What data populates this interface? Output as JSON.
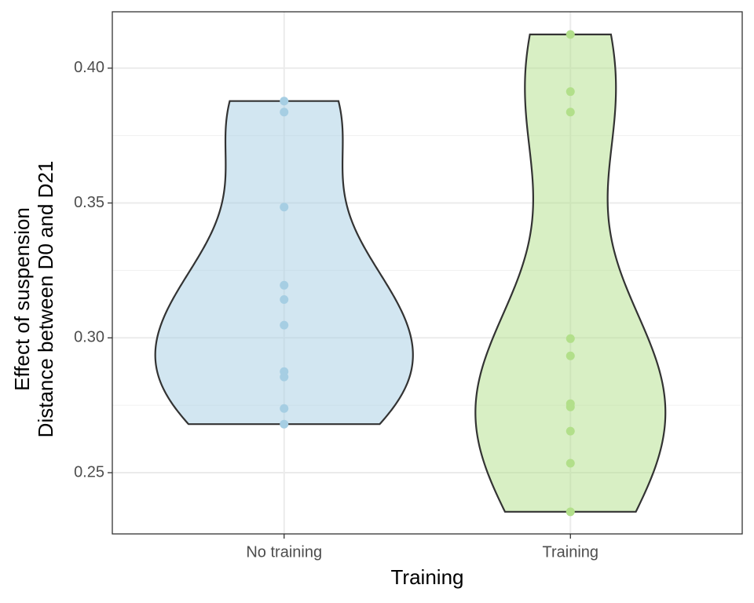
{
  "chart_data": {
    "type": "violin",
    "x_label": "Training",
    "y_label": [
      "Effect of suspension",
      "Distance between D0 and D21"
    ],
    "categories": [
      "No training",
      "Training"
    ],
    "series": [
      {
        "name": "No training",
        "color": "#a6cee3",
        "values": [
          0.3878,
          0.3837,
          0.3485,
          0.3195,
          0.3142,
          0.3047,
          0.2875,
          0.2855,
          0.2738,
          0.268
        ]
      },
      {
        "name": "Training",
        "color": "#b2df8a",
        "values": [
          0.4125,
          0.3913,
          0.3837,
          0.2997,
          0.2933,
          0.2756,
          0.2744,
          0.2654,
          0.2535,
          0.2355
        ]
      }
    ],
    "ylim": [
      0.2273,
      0.4209
    ],
    "yticks": [
      {
        "value": 0.25,
        "label": "0.25"
      },
      {
        "value": 0.3,
        "label": "0.30"
      },
      {
        "value": 0.35,
        "label": "0.35"
      },
      {
        "value": 0.4,
        "label": "0.40"
      }
    ],
    "grid": true
  }
}
